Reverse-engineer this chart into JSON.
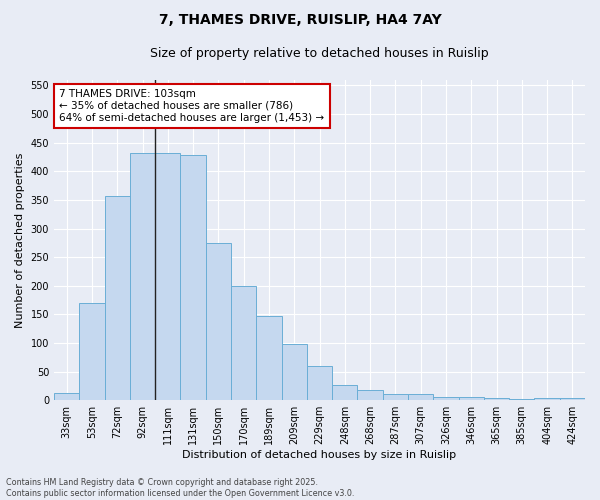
{
  "title_line1": "7, THAMES DRIVE, RUISLIP, HA4 7AY",
  "title_line2": "Size of property relative to detached houses in Ruislip",
  "xlabel": "Distribution of detached houses by size in Ruislip",
  "ylabel": "Number of detached properties",
  "categories": [
    "33sqm",
    "53sqm",
    "72sqm",
    "92sqm",
    "111sqm",
    "131sqm",
    "150sqm",
    "170sqm",
    "189sqm",
    "209sqm",
    "229sqm",
    "248sqm",
    "268sqm",
    "287sqm",
    "307sqm",
    "326sqm",
    "346sqm",
    "365sqm",
    "385sqm",
    "404sqm",
    "424sqm"
  ],
  "values": [
    12,
    170,
    357,
    432,
    432,
    428,
    275,
    200,
    148,
    98,
    60,
    26,
    18,
    10,
    11,
    6,
    5,
    4,
    2,
    3,
    3
  ],
  "bar_color": "#c5d8ef",
  "bar_edge_color": "#6aaed6",
  "vline_x_index": 3.5,
  "annotation_text": "7 THAMES DRIVE: 103sqm\n← 35% of detached houses are smaller (786)\n64% of semi-detached houses are larger (1,453) →",
  "annotation_box_facecolor": "#ffffff",
  "annotation_box_edgecolor": "#cc0000",
  "ylim": [
    0,
    560
  ],
  "yticks": [
    0,
    50,
    100,
    150,
    200,
    250,
    300,
    350,
    400,
    450,
    500,
    550
  ],
  "background_color": "#e8ecf5",
  "grid_color": "#ffffff",
  "footer_line1": "Contains HM Land Registry data © Crown copyright and database right 2025.",
  "footer_line2": "Contains public sector information licensed under the Open Government Licence v3.0.",
  "title_fontsize": 10,
  "subtitle_fontsize": 9,
  "tick_fontsize": 7,
  "ylabel_fontsize": 8,
  "xlabel_fontsize": 8,
  "annotation_fontsize": 7.5,
  "footer_fontsize": 5.8
}
